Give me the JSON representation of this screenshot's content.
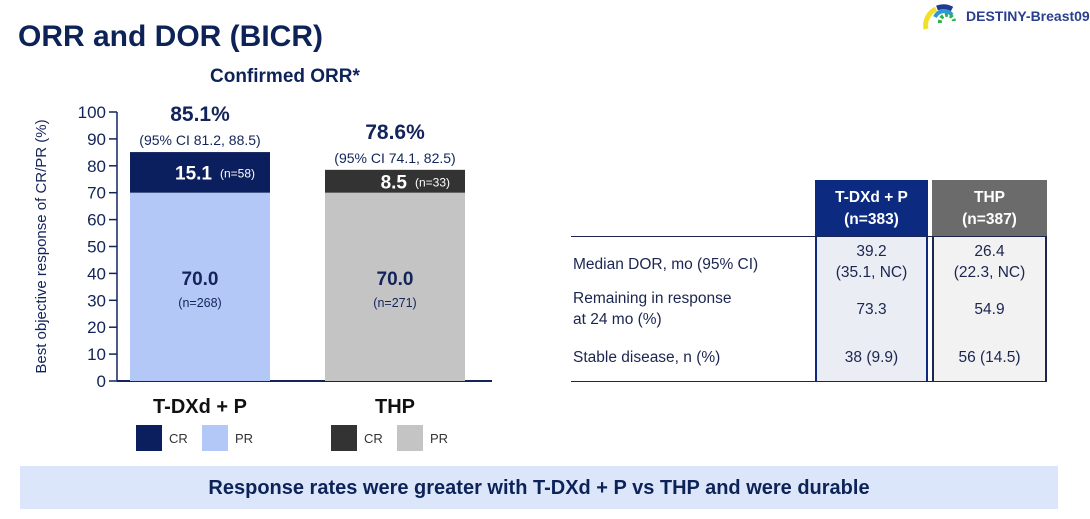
{
  "header": {
    "title": "ORR and DOR (BICR)",
    "logo_text": "DESTINY-Breast09"
  },
  "chart_data": {
    "type": "bar",
    "stacked": true,
    "title": "Confirmed ORR*",
    "ylabel": "Best objective response of CR/PR (%)",
    "ylim": [
      0,
      100
    ],
    "yticks": [
      "0",
      "10",
      "20",
      "30",
      "40",
      "50",
      "60",
      "70",
      "80",
      "90",
      "100"
    ],
    "grid": false,
    "categories": [
      "T-DXd + P",
      "THP"
    ],
    "bars": [
      {
        "category": "T-DXd + P",
        "total_label": "85.1%",
        "ci_label": "(95% CI 81.2, 88.5)",
        "pr": 70.0,
        "pr_label": "70.0",
        "pr_n": "(n=268)",
        "cr": 15.1,
        "cr_label": "15.1",
        "cr_n": "(n=58)",
        "cr_color": "#0b1f5e",
        "pr_color": "#b4c8f8"
      },
      {
        "category": "THP",
        "total_label": "78.6%",
        "ci_label": "(95% CI 74.1, 82.5)",
        "pr": 70.0,
        "pr_label": "70.0",
        "pr_n": "(n=271)",
        "cr": 8.5,
        "cr_label": "8.5",
        "cr_n": "(n=33)",
        "cr_color": "#333333",
        "pr_color": "#c4c4c4"
      }
    ],
    "legend": [
      {
        "items": [
          {
            "label": "CR",
            "color": "#0b1f5e"
          },
          {
            "label": "PR",
            "color": "#b4c8f8"
          }
        ]
      },
      {
        "items": [
          {
            "label": "CR",
            "color": "#333333"
          },
          {
            "label": "PR",
            "color": "#c4c4c4"
          }
        ]
      }
    ],
    "legend_placement": "bottom"
  },
  "table": {
    "columns": [
      {
        "line1": "T-DXd + P",
        "line2": "(n=383)",
        "color": "#0b2a80"
      },
      {
        "line1": "THP",
        "line2": "(n=387)",
        "color": "#6b6b6b"
      }
    ],
    "rows": [
      {
        "label": [
          "Median DOR, mo (95% CI)"
        ],
        "values": [
          [
            "39.2",
            "(35.1, NC)"
          ],
          [
            "26.4",
            "(22.3, NC)"
          ]
        ]
      },
      {
        "label": [
          "Remaining in response",
          "at 24 mo (%)"
        ],
        "values": [
          [
            "73.3"
          ],
          [
            "54.9"
          ]
        ]
      },
      {
        "label": [
          "Stable disease, n (%)"
        ],
        "values": [
          [
            "38 (9.9)"
          ],
          [
            "56 (14.5)"
          ]
        ]
      }
    ]
  },
  "banner": "Response rates were greater with T-DXd + P vs THP and were durable"
}
